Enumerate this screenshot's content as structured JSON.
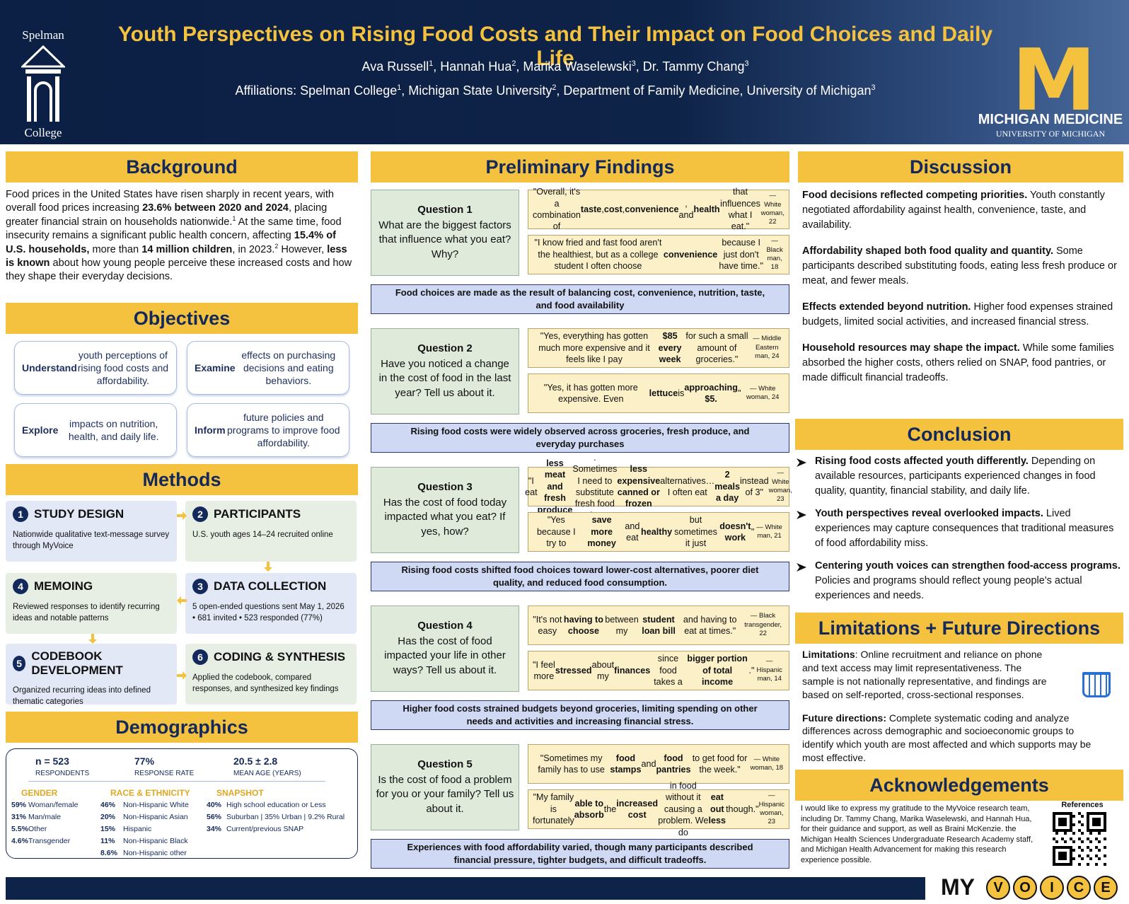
{
  "header": {
    "title": "Youth Perspectives on Rising Food Costs and Their Impact on Food Choices and Daily Life",
    "authors": [
      "Ava Russell",
      {
        "sup": "1"
      },
      ", Hannah Hua",
      {
        "sup": "2"
      },
      ", Marika Waselewski",
      {
        "sup": "3"
      },
      ", Dr. Tammy Chang",
      {
        "sup": "3"
      }
    ],
    "affiliations": [
      "Affiliations: Spelman College",
      {
        "sup": "1"
      },
      ", Michigan State University",
      {
        "sup": "2"
      },
      ", Department of Family Medicine, University of Michigan",
      {
        "sup": "3"
      }
    ],
    "spelman_top": "Spelman",
    "spelman_bottom": "College",
    "michigan_logo": "M",
    "michigan_name": "MICHIGAN MEDICINE",
    "michigan_sub": "UNIVERSITY OF MICHIGAN"
  },
  "background": {
    "heading": "Background",
    "text": [
      "Food prices in the United States have risen sharply in recent years, with overall food prices increasing ",
      {
        "bold": "23.6% between 2020 and 2024"
      },
      ", placing greater financial strain on households nationwide.",
      {
        "sup": "1"
      },
      " At the same time, food insecurity remains a significant public health concern, affecting ",
      {
        "bold": "15.4% of U.S. households,"
      },
      " more than ",
      {
        "bold": "14 million children"
      },
      ", in 2023.",
      {
        "sup": "2"
      },
      " However, ",
      {
        "bold": "less is known"
      },
      " about how young people perceive these increased costs and how they shape their everyday decisions."
    ]
  },
  "objectives": {
    "heading": "Objectives",
    "items": [
      [
        {
          "bold": "Understand"
        },
        " youth perceptions of rising food costs and affordability."
      ],
      [
        {
          "bold": "Examine"
        },
        " effects on purchasing decisions and eating behaviors."
      ],
      [
        {
          "bold": "Explore"
        },
        " impacts on nutrition, health, and daily life."
      ],
      [
        {
          "bold": "Inform"
        },
        " future policies and programs to improve food affordability."
      ]
    ]
  },
  "methods": {
    "heading": "Methods",
    "steps": [
      {
        "number": "1",
        "title": "STUDY DESIGN",
        "text": "Nationwide qualitative text-message survey through MyVoice"
      },
      {
        "number": "2",
        "title": "PARTICIPANTS",
        "text": "U.S. youth ages 14–24 recruited online"
      },
      {
        "number": "3",
        "title": "DATA COLLECTION",
        "text": "5 open-ended questions sent May 1, 2026 • 681 invited • 523 responded (77%)"
      },
      {
        "number": "4",
        "title": "MEMOING",
        "text": "Reviewed responses to identify recurring ideas and notable patterns"
      },
      {
        "number": "5",
        "title": "CODEBOOK DEVELOPMENT",
        "text": "Organized recurring ideas into defined thematic categories"
      },
      {
        "number": "6",
        "title": "CODING & SYNTHESIS",
        "text": "Applied the codebook, compared responses, and synthesized key findings"
      }
    ]
  },
  "demographics": {
    "heading": "Demographics",
    "stats": [
      {
        "value": "n = 523",
        "label": "RESPONDENTS"
      },
      {
        "value": "77%",
        "label": "RESPONSE RATE"
      },
      {
        "value": "20.5 ± 2.8",
        "label": "MEAN AGE (YEARS)"
      }
    ],
    "groups": [
      {
        "title": "GENDER",
        "rows": [
          [
            "59%",
            "Woman/female"
          ],
          [
            "31%",
            "Man/male"
          ],
          [
            "5.5%",
            "Other"
          ],
          [
            "4.6%",
            "Transgender"
          ]
        ]
      },
      {
        "title": "RACE & ETHNICITY",
        "rows": [
          [
            "46%",
            "Non-Hispanic White"
          ],
          [
            "20%",
            "Non-Hispanic Asian"
          ],
          [
            "15%",
            "Hispanic"
          ],
          [
            "11%",
            "Non-Hispanic Black"
          ],
          [
            "8.6%",
            "Non-Hispanic other"
          ]
        ]
      },
      {
        "title": "SNAPSHOT",
        "rows": [
          [
            "40%",
            "High school education or Less"
          ],
          [
            "56%",
            "Suburban | 35% Urban | 9.2% Rural"
          ],
          [
            "34%",
            "Current/previous SNAP"
          ]
        ]
      }
    ]
  },
  "findings": {
    "heading": "Preliminary Findings",
    "questions": [
      {
        "label": "Question 1",
        "question": "What are the biggest factors that influence what you eat? Why?",
        "quotes": [
          [
            "\"Overall, it's a combination of ",
            {
              "bold": "taste"
            },
            ", ",
            {
              "bold": "cost"
            },
            ", ",
            {
              "bold": "convenience"
            },
            ", and ",
            {
              "bold": "health"
            },
            " that influences what I eat.\" ",
            {
              "small": "— White woman, 22"
            }
          ],
          [
            "\"I know fried and fast food aren't the healthiest, but as a college student I often choose ",
            {
              "bold": "convenience"
            },
            " because I just don't have time.\" ",
            {
              "small": "— Black man, 18"
            }
          ]
        ],
        "summary": "Food choices are made as the result of balancing cost, convenience, nutrition, taste, and food availability"
      },
      {
        "label": "Question 2",
        "question": "Have you noticed a change in the cost of food in the last year? Tell us about it.",
        "quotes": [
          [
            "\"Yes, everything has gotten much more expensive and it feels like I pay ",
            {
              "bold": "$85 every week"
            },
            " for such a small amount of groceries.\" ",
            {
              "small": "— Middle Eastern man, 24"
            }
          ],
          [
            "\"Yes, it has gotten more expensive. Even ",
            {
              "bold": "lettuce"
            },
            " is ",
            {
              "bold": "approaching $5."
            },
            "\" ",
            {
              "small": "— White woman, 24"
            }
          ]
        ],
        "summary": "Rising food costs were widely observed across groceries, fresh produce, and everyday purchases"
      },
      {
        "label": "Question 3",
        "question": "Has the cost of food today impacted what you eat? If yes, how?",
        "quotes": [
          [
            "\"I eat ",
            {
              "bold": "less meat and fresh produce"
            },
            ". Sometimes I need to substitute fresh food for ",
            {
              "bold": "less expensive canned or frozen"
            },
            " alternatives… I often eat ",
            {
              "bold": "2 meals a day"
            },
            " instead of 3\" ",
            {
              "small": "— White woman, 23"
            }
          ],
          [
            "\"Yes because I try to ",
            {
              "bold": "save more money"
            },
            " and eat ",
            {
              "bold": "healthy"
            },
            " but sometimes it just ",
            {
              "bold": "doesn't work"
            },
            "\" ",
            {
              "small": "— White man, 21"
            }
          ]
        ],
        "summary": "Rising food costs shifted food choices toward lower-cost alternatives, poorer diet quality, and reduced food consumption."
      },
      {
        "label": "Question 4",
        "question": "Has the cost of food impacted your life in other ways? Tell us about it.",
        "quotes": [
          [
            "\"It's not easy ",
            {
              "bold": "having to choose"
            },
            " between my ",
            {
              "bold": "student loan bill"
            },
            " and having to eat at times.\" ",
            {
              "small": "— Black transgender, 22"
            }
          ],
          [
            "\"I feel more ",
            {
              "bold": "stressed"
            },
            " about my ",
            {
              "bold": "finances"
            },
            " since food takes a ",
            {
              "bold": "bigger portion of total income"
            },
            ".\" ",
            {
              "small": "— Hispanic man, 14"
            }
          ]
        ],
        "summary": "Higher food costs strained budgets beyond groceries, limiting spending on other needs and activities and increasing financial stress."
      },
      {
        "label": "Question 5",
        "question": "Is the cost of food a problem for you or your family? Tell us about it.",
        "quotes": [
          [
            "\"Sometimes my family has to use ",
            {
              "bold": "food stamps"
            },
            " and ",
            {
              "bold": "food pantries"
            },
            " to get food for the week.\" ",
            {
              "small": "— White woman, 18"
            }
          ],
          [
            "\"My family is fortunately ",
            {
              "bold": "able to absorb"
            },
            " the ",
            {
              "bold": "increased cost"
            },
            " in food without it causing a problem. We do ",
            {
              "bold": "eat out less"
            },
            " though.\" ",
            {
              "small": "— Hispanic woman, 23"
            }
          ]
        ],
        "summary": "Experiences with food affordability varied, though many participants described financial pressure, tighter budgets, and difficult tradeoffs."
      }
    ]
  },
  "discussion": {
    "heading": "Discussion",
    "paragraphs": [
      [
        {
          "bold": "Food decisions reflected competing priorities."
        },
        " Youth constantly negotiated affordability against health, convenience, taste, and availability."
      ],
      [
        {
          "bold": "Affordability shaped both food quality and quantity."
        },
        " Some participants described substituting foods, eating less fresh produce or meat, and fewer meals."
      ],
      [
        {
          "bold": "Effects extended beyond nutrition."
        },
        " Higher food expenses strained budgets, limited social activities, and increased financial stress."
      ],
      [
        {
          "bold": "Household resources may shape the impact."
        },
        " While some families absorbed the higher costs, others relied on SNAP, food pantries, or made difficult financial tradeoffs."
      ]
    ]
  },
  "conclusion": {
    "heading": "Conclusion",
    "items": [
      [
        {
          "bold": "Rising food costs affected youth differently."
        },
        " Depending on available resources, participants experienced changes in food quality, quantity, financial stability, and daily life."
      ],
      [
        {
          "bold": "Youth perspectives reveal overlooked impacts."
        },
        " Lived experiences may capture consequences that traditional measures of food affordability miss."
      ],
      [
        {
          "bold": "Centering youth voices can strengthen food-access programs."
        },
        " Policies and programs should reflect young people's actual experiences and needs."
      ]
    ]
  },
  "limitations": {
    "heading": "Limitations + Future Directions",
    "paragraphs": [
      [
        {
          "bold": "Limitations"
        },
        ": Online recruitment and reliance on phone and text access may limit representativeness. The sample is not nationally representative, and findings are based on self-reported, cross-sectional responses."
      ],
      [
        {
          "bold": "Future directions:"
        },
        " Complete systematic coding and analyze differences across demographic and socioeconomic groups to identify which youth are most affected and which supports may be most effective."
      ]
    ]
  },
  "acknowledgements": {
    "heading": "Acknowledgements",
    "text": "I would like to express my gratitude to the MyVoice research team, including Dr. Tammy Chang, Marika Waselewski, and Hannah Hua, for their guidance and support, as well as Braini McKenzie. the Michigan Health Sciences Undergraduate Research Academy staff, and Michigan Health Advancement for making this research experience possible.",
    "references_label": "References"
  },
  "footer": {
    "logo_my": "MY",
    "logo_letters": [
      "V",
      "O",
      "I",
      "C",
      "E"
    ]
  }
}
